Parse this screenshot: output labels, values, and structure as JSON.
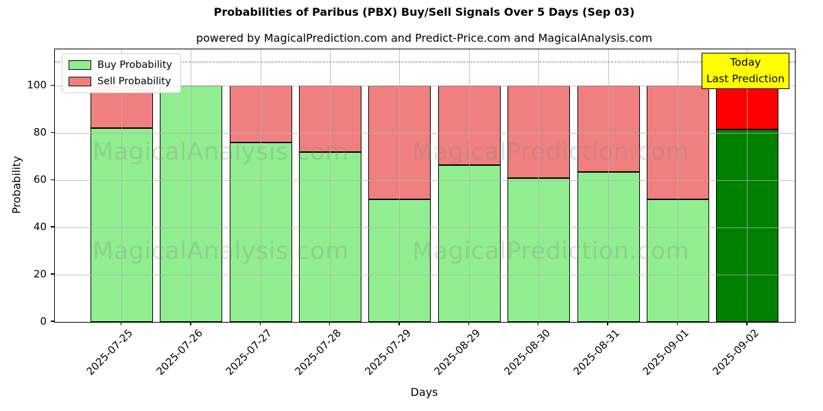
{
  "chart_data": {
    "type": "bar",
    "stacked": true,
    "title": "Probabilities of Paribus (PBX) Buy/Sell Signals Over 5 Days (Sep 03)",
    "subtitle": "powered by MagicalPrediction.com and Predict-Price.com and MagicalAnalysis.com",
    "xlabel": "Days",
    "ylabel": "Probability",
    "categories": [
      "2025-07-25",
      "2025-07-26",
      "2025-07-27",
      "2025-07-28",
      "2025-07-29",
      "2025-08-29",
      "2025-08-30",
      "2025-08-31",
      "2025-09-01",
      "2025-09-02"
    ],
    "series": [
      {
        "name": "Buy Probability",
        "color": "#90EE90",
        "last_bar_color": "#008000",
        "values": [
          82,
          100,
          76,
          72,
          52,
          66.5,
          61,
          63.5,
          52,
          81.5
        ]
      },
      {
        "name": "Sell Probability",
        "color": "#F08080",
        "last_bar_color": "#FF0000",
        "values": [
          18,
          0,
          24,
          28,
          48,
          33.5,
          39,
          36.5,
          48,
          18.5
        ]
      }
    ],
    "ylim": [
      0,
      115.5
    ],
    "yticks": [
      0,
      20,
      40,
      60,
      80,
      100
    ],
    "dashed_line_y": 110,
    "grid": true,
    "legend_position": "upper left"
  },
  "legend": {
    "items": [
      {
        "label": "Buy Probability",
        "color": "#90EE90"
      },
      {
        "label": "Sell Probability",
        "color": "#F08080"
      }
    ]
  },
  "annotation": {
    "line1": "Today",
    "line2": "Last Prediction",
    "bg_color": "#FFFF00"
  },
  "watermarks": {
    "left": "MagicalAnalysis.com",
    "right": "MagicalPrediction.com"
  }
}
